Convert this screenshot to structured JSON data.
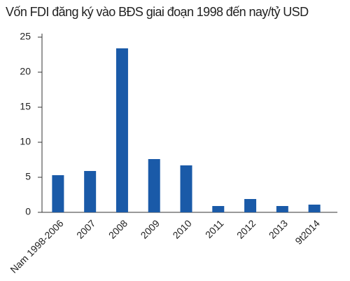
{
  "chart_data": {
    "type": "bar",
    "title": "Vốn FDI đăng ký vào BĐS giai đoạn 1998 đến nay/tỷ USD",
    "categories": [
      "Nam 1998-2006",
      "2007",
      "2008",
      "2009",
      "2010",
      "2011",
      "2012",
      "2013",
      "9t2014"
    ],
    "values": [
      5.3,
      5.9,
      23.4,
      7.6,
      6.7,
      0.9,
      1.9,
      0.9,
      1.1
    ],
    "color": "#1a5aa8",
    "ylim": [
      0,
      25
    ],
    "yticks": [
      0,
      5,
      10,
      15,
      20,
      25
    ],
    "grid": false
  }
}
